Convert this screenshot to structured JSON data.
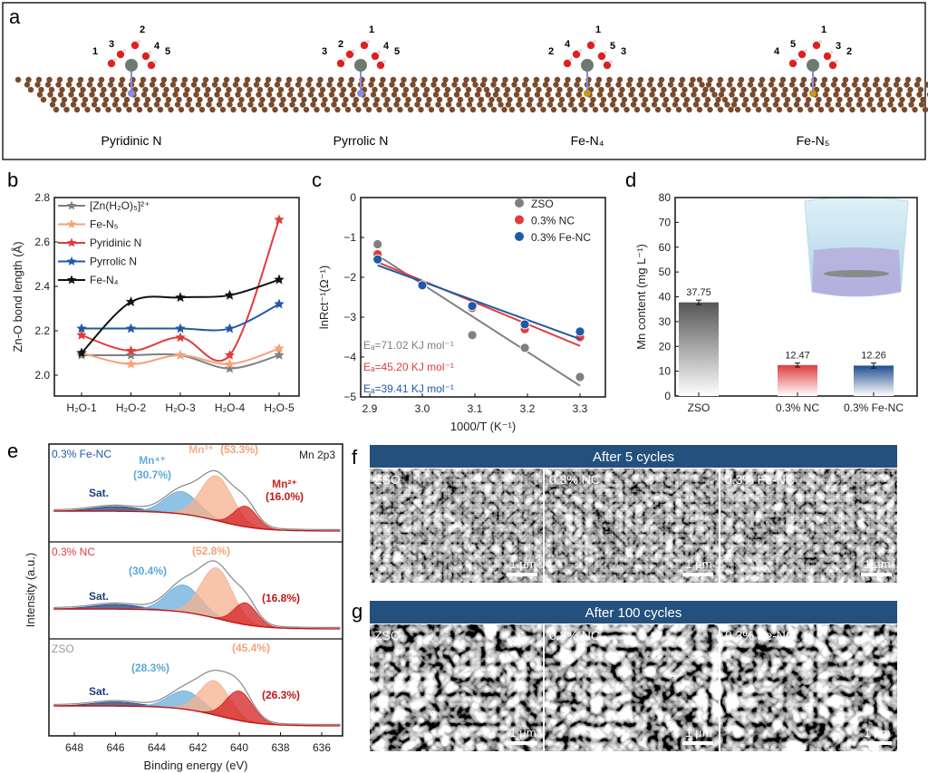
{
  "panel_a": {
    "label": "a",
    "structures": [
      {
        "name": "Pyridinic N",
        "atom_numbers": [
          "1",
          "3",
          "2",
          "4",
          "5"
        ]
      },
      {
        "name": "Pyrrolic N",
        "atom_numbers": [
          "3",
          "2",
          "1",
          "4",
          "5"
        ]
      },
      {
        "name": "Fe-N₄",
        "atom_numbers": [
          "2",
          "4",
          "1",
          "5",
          "3"
        ]
      },
      {
        "name": "Fe-N₅",
        "atom_numbers": [
          "4",
          "5",
          "1",
          "3",
          "2"
        ]
      }
    ],
    "colors": {
      "carbon": "#7a4a2c",
      "oxygen": "#e02020",
      "zinc": "#6e7a70",
      "nitrogen": "#8a8ae0",
      "iron": "#c8961e"
    }
  },
  "chart_data": [
    {
      "panel": "b",
      "type": "line",
      "categories": [
        "H₂O-1",
        "H₂O-2",
        "H₂O-3",
        "H₂O-4",
        "H₂O-5"
      ],
      "ylabel": "Zn-O bond length (Å)",
      "xlabel": "",
      "ylim": [
        1.9,
        2.8
      ],
      "yticks": [
        "2.0",
        "2.2",
        "2.4",
        "2.6",
        "2.8"
      ],
      "legend_position": "top-left",
      "series": [
        {
          "name": "[Zn(H₂O)₅]²⁺",
          "color": "#808080",
          "values": [
            2.09,
            2.09,
            2.09,
            2.03,
            2.09
          ]
        },
        {
          "name": "Fe-N₅",
          "color": "#f5a27a",
          "values": [
            2.1,
            2.05,
            2.09,
            2.05,
            2.12
          ]
        },
        {
          "name": "Pyridinic N",
          "color": "#e03c3c",
          "values": [
            2.18,
            2.11,
            2.17,
            2.09,
            2.7
          ]
        },
        {
          "name": "Pyrrolic N",
          "color": "#1f5aa6",
          "values": [
            2.21,
            2.21,
            2.21,
            2.21,
            2.32
          ]
        },
        {
          "name": "Fe-N₄",
          "color": "#111111",
          "values": [
            2.1,
            2.33,
            2.35,
            2.36,
            2.43
          ]
        }
      ]
    },
    {
      "panel": "c",
      "type": "scatter",
      "xlabel": "1000/T (K⁻¹)",
      "ylabel": "lnRct⁻¹(Ω⁻¹)",
      "xlim": [
        2.87,
        3.33
      ],
      "ylim": [
        -5,
        0
      ],
      "xticks": [
        "2.9",
        "3.0",
        "3.1",
        "3.2",
        "3.3"
      ],
      "yticks": [
        "0",
        "−1",
        "−2",
        "−3",
        "−4",
        "−5"
      ],
      "legend_position": "top-right",
      "x": [
        2.915,
        3.0,
        3.095,
        3.195,
        3.3
      ],
      "series": [
        {
          "name": "ZSO",
          "color": "#808080",
          "values": [
            -1.17,
            -2.2,
            -3.45,
            -3.77,
            -4.5
          ],
          "fit": [
            -1.45,
            -4.72
          ],
          "annotation": "Eₐ=71.02 KJ mol⁻¹"
        },
        {
          "name": "0.3% NC",
          "color": "#e03c3c",
          "values": [
            -1.42,
            -2.22,
            -2.77,
            -3.3,
            -3.5
          ],
          "fit": [
            -1.62,
            -3.72
          ],
          "annotation": "Eₐ=45.20 KJ mol⁻¹"
        },
        {
          "name": "0.3% Fe-NC",
          "color": "#1f5aa6",
          "values": [
            -1.55,
            -2.2,
            -2.72,
            -3.18,
            -3.36
          ],
          "fit": [
            -1.7,
            -3.55
          ],
          "annotation": "Eₐ=39.41 KJ mol⁻¹"
        }
      ]
    },
    {
      "panel": "d",
      "type": "bar",
      "categories": [
        "ZSO",
        "0.3% NC",
        "0.3% Fe-NC"
      ],
      "values": [
        37.75,
        12.47,
        12.26
      ],
      "data_labels": [
        "37.75",
        "12.47",
        "12.26"
      ],
      "errors": [
        0.9,
        0.8,
        1.0
      ],
      "colors": [
        "#5a5a5a",
        "#e03c3c",
        "#1f4f8f"
      ],
      "ylabel": "Mn content (mg L⁻¹)",
      "ylim": [
        0,
        80
      ],
      "yticks": [
        "0",
        "10",
        "20",
        "30",
        "40",
        "50",
        "60",
        "70",
        "80"
      ]
    },
    {
      "panel": "e",
      "type": "area",
      "xlabel": "Binding energy (eV)",
      "ylabel": "Intensity (a.u.)",
      "xlim": [
        649,
        635
      ],
      "xticks": [
        "648",
        "646",
        "644",
        "642",
        "640",
        "638",
        "636"
      ],
      "title": "Mn 2p3",
      "component_colors": {
        "Sat.": "#1d3f78",
        "Mn⁴⁺": "#6aaedb",
        "Mn³⁺": "#f6b08e",
        "Mn²⁺": "#d42020",
        "envelope": "#888888"
      },
      "samples": [
        {
          "name": "0.3% Fe-NC",
          "name_color": "#1f5aa6",
          "components": [
            {
              "label": "Sat.",
              "center": 646.0,
              "fwhm": 2.6,
              "height": 0.08,
              "percent": ""
            },
            {
              "label": "Mn⁴⁺",
              "center": 642.8,
              "fwhm": 1.9,
              "height": 0.38,
              "percent": "(30.7%)"
            },
            {
              "label": "Mn³⁺",
              "center": 641.1,
              "fwhm": 1.8,
              "height": 0.76,
              "percent": "(53.3%)"
            },
            {
              "label": "Mn²⁺",
              "center": 639.7,
              "fwhm": 1.3,
              "height": 0.35,
              "percent": "(16.0%)"
            }
          ]
        },
        {
          "name": "0.3% NC",
          "name_color": "#e03c3c",
          "components": [
            {
              "label": "Sat.",
              "center": 646.0,
              "fwhm": 2.6,
              "height": 0.08,
              "percent": ""
            },
            {
              "label": "Mn⁴⁺",
              "center": 642.7,
              "fwhm": 1.9,
              "height": 0.46,
              "percent": "(30.4%)"
            },
            {
              "label": "Mn³⁺",
              "center": 641.1,
              "fwhm": 1.8,
              "height": 0.86,
              "percent": "(52.8%)"
            },
            {
              "label": "Mn²⁺",
              "center": 639.7,
              "fwhm": 1.3,
              "height": 0.37,
              "percent": "(16.8%)"
            }
          ]
        },
        {
          "name": "ZSO",
          "name_color": "#999999",
          "components": [
            {
              "label": "Sat.",
              "center": 646.0,
              "fwhm": 2.6,
              "height": 0.07,
              "percent": ""
            },
            {
              "label": "Mn⁴⁺",
              "center": 642.6,
              "fwhm": 1.9,
              "height": 0.31,
              "percent": "(28.3%)"
            },
            {
              "label": "Mn³⁺",
              "center": 641.2,
              "fwhm": 1.7,
              "height": 0.58,
              "percent": "(45.4%)"
            },
            {
              "label": "Mn²⁺",
              "center": 640.0,
              "fwhm": 1.5,
              "height": 0.5,
              "percent": "(26.3%)"
            }
          ]
        }
      ]
    }
  ],
  "panel_labels": {
    "b": "b",
    "c": "c",
    "d": "d",
    "e": "e",
    "f": "f",
    "g": "g"
  },
  "panel_f": {
    "header": "After 5 cycles",
    "images": [
      {
        "label": "ZSO"
      },
      {
        "label": "0.3% NC"
      },
      {
        "label": "0.3% Fe-NC"
      }
    ],
    "scale_bar": "1 µm",
    "header_color": "#24507e"
  },
  "panel_g": {
    "header": "After 100 cycles",
    "images": [
      {
        "label": "ZSO"
      },
      {
        "label": "0.3% NC"
      },
      {
        "label": "0.3% Fe-NC"
      }
    ],
    "scale_bar": "1 µm",
    "header_color": "#24507e"
  }
}
